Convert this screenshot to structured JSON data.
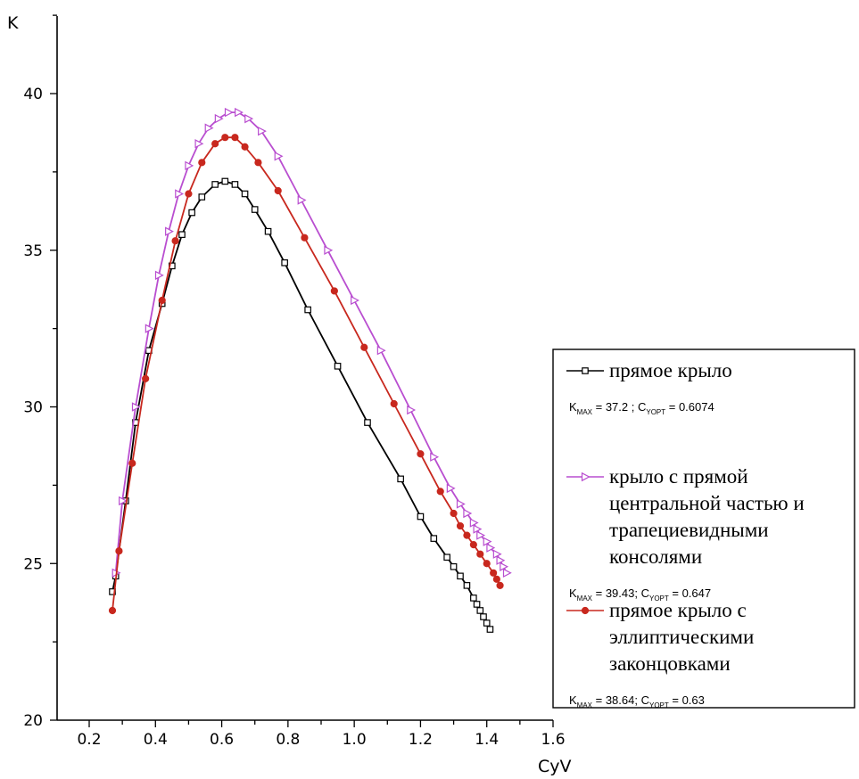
{
  "chart_data": {
    "type": "line",
    "xlabel": "CyV",
    "ylabel": "K",
    "xlim": [
      0.1,
      1.6
    ],
    "ylim": [
      20,
      42
    ],
    "xticks": [
      "0.2",
      "0.4",
      "0.6",
      "0.8",
      "1.0",
      "1.2",
      "1.4",
      "1.6"
    ],
    "yticks": [
      "20",
      "25",
      "30",
      "35",
      "40"
    ],
    "grid": false,
    "legend_position": "right",
    "series": [
      {
        "name": "прямое крыло",
        "note": {
          "k": "K",
          "k_sub": "MAX",
          "k_val": " = 37.2 ; C",
          "c_sub": "YOPT",
          "c_val": " = 0.6074"
        },
        "color": "#000000",
        "marker": "square",
        "x": [
          0.27,
          0.28,
          0.31,
          0.34,
          0.38,
          0.42,
          0.45,
          0.48,
          0.51,
          0.54,
          0.58,
          0.61,
          0.64,
          0.67,
          0.7,
          0.74,
          0.79,
          0.86,
          0.95,
          1.04,
          1.14,
          1.2,
          1.24,
          1.28,
          1.3,
          1.32,
          1.34,
          1.36,
          1.37,
          1.38,
          1.39,
          1.4,
          1.41
        ],
        "y": [
          24.1,
          24.6,
          27.0,
          29.5,
          31.8,
          33.3,
          34.5,
          35.5,
          36.2,
          36.7,
          37.1,
          37.2,
          37.1,
          36.8,
          36.3,
          35.6,
          34.6,
          33.1,
          31.3,
          29.5,
          27.7,
          26.5,
          25.8,
          25.2,
          24.9,
          24.6,
          24.3,
          23.9,
          23.7,
          23.5,
          23.3,
          23.1,
          22.9
        ]
      },
      {
        "name": "крыло с прямой центральной частью и трапециевидными консолями",
        "note": {
          "k": "K",
          "k_sub": "MAX",
          "k_val": " = 39.43; C",
          "c_sub": "YOPT",
          "c_val": " = 0.647"
        },
        "color": "#b94ed0",
        "marker": "triangle",
        "x": [
          0.28,
          0.3,
          0.34,
          0.38,
          0.41,
          0.44,
          0.47,
          0.5,
          0.53,
          0.56,
          0.59,
          0.62,
          0.65,
          0.68,
          0.72,
          0.77,
          0.84,
          0.92,
          1.0,
          1.08,
          1.17,
          1.24,
          1.29,
          1.32,
          1.34,
          1.36,
          1.37,
          1.38,
          1.4,
          1.41,
          1.43,
          1.44,
          1.45,
          1.46
        ],
        "y": [
          24.7,
          27.0,
          30.0,
          32.5,
          34.2,
          35.6,
          36.8,
          37.7,
          38.4,
          38.9,
          39.2,
          39.4,
          39.4,
          39.2,
          38.8,
          38.0,
          36.6,
          35.0,
          33.4,
          31.8,
          29.9,
          28.4,
          27.4,
          26.9,
          26.6,
          26.3,
          26.1,
          25.9,
          25.7,
          25.5,
          25.3,
          25.1,
          24.9,
          24.7
        ]
      },
      {
        "name": "прямое крыло с эллиптическими законцовками",
        "note": {
          "k": "K",
          "k_sub": "MAX",
          "k_val": " =  38.64; C",
          "c_sub": "YOPT",
          "c_val": " = 0.63"
        },
        "color": "#c8281e",
        "marker": "circle",
        "x": [
          0.27,
          0.29,
          0.33,
          0.37,
          0.42,
          0.46,
          0.5,
          0.54,
          0.58,
          0.61,
          0.64,
          0.67,
          0.71,
          0.77,
          0.85,
          0.94,
          1.03,
          1.12,
          1.2,
          1.26,
          1.3,
          1.32,
          1.34,
          1.36,
          1.38,
          1.4,
          1.42,
          1.43,
          1.44
        ],
        "y": [
          23.5,
          25.4,
          28.2,
          30.9,
          33.4,
          35.3,
          36.8,
          37.8,
          38.4,
          38.6,
          38.6,
          38.3,
          37.8,
          36.9,
          35.4,
          33.7,
          31.9,
          30.1,
          28.5,
          27.3,
          26.6,
          26.2,
          25.9,
          25.6,
          25.3,
          25.0,
          24.7,
          24.5,
          24.3
        ]
      }
    ]
  }
}
